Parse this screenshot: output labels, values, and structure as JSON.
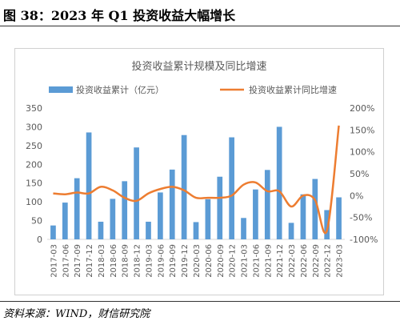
{
  "figure": {
    "title": "图 38：2023 年 Q1 投资收益大幅增长",
    "source": "资料来源：WIND，财信研究院"
  },
  "chart_data": {
    "type": "bar",
    "title": "投资收益累计规模及同比增速",
    "categories": [
      "2017-03",
      "2017-06",
      "2017-09",
      "2017-12",
      "2018-03",
      "2018-06",
      "2018-09",
      "2018-12",
      "2019-03",
      "2019-06",
      "2019-09",
      "2019-12",
      "2020-03",
      "2020-06",
      "2020-09",
      "2020-12",
      "2021-03",
      "2021-06",
      "2021-09",
      "2021-12",
      "2022-03",
      "2022-06",
      "2022-09",
      "2022-12",
      "2023-03"
    ],
    "series": [
      {
        "name": "投资收益累计（亿元）",
        "type": "bar",
        "axis": "left",
        "color": "#5b9bd5",
        "values": [
          37,
          98,
          163,
          285,
          47,
          108,
          155,
          245,
          47,
          125,
          186,
          278,
          46,
          107,
          167,
          272,
          57,
          133,
          185,
          300,
          44,
          120,
          161,
          78,
          112
        ]
      },
      {
        "name": "投资收益累计同比增速",
        "type": "line",
        "axis": "right",
        "color": "#ed7d31",
        "values": [
          5,
          3,
          7,
          5,
          20,
          12,
          -5,
          -12,
          5,
          15,
          20,
          12,
          -5,
          -5,
          -5,
          0,
          25,
          30,
          10,
          10,
          -25,
          0,
          -10,
          -80,
          160
        ]
      }
    ],
    "ylim_left": [
      0,
      350
    ],
    "yticks_left": [
      0,
      50,
      100,
      150,
      200,
      250,
      300,
      350
    ],
    "ylim_right": [
      -100,
      200
    ],
    "yticks_right": [
      "-100%",
      "-50%",
      "0%",
      "50%",
      "100%",
      "150%",
      "200%"
    ],
    "grid": false,
    "legend": "top"
  }
}
